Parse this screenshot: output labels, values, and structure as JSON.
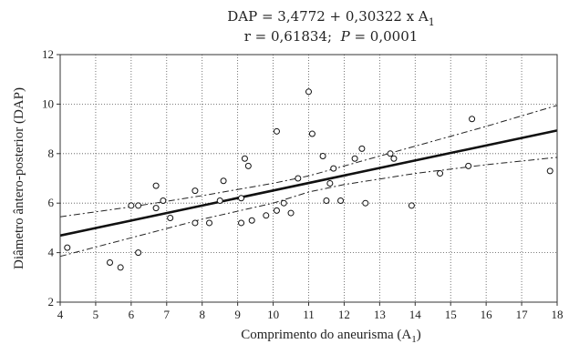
{
  "chart_data": {
    "type": "scatter",
    "title": {
      "line1_prefix": "DAP = 3,4772 + 0,30322 x A",
      "line1_sub": "1",
      "line2_r": "r = 0,61834;",
      "line2_p_sym": "P",
      "line2_p_val": " = 0,0001"
    },
    "xlabel": {
      "text": "Comprimento do aneurisma (A",
      "sub": "1",
      "close": ")"
    },
    "ylabel": "Diâmetro ântero-posterior (DAP)",
    "xlim": [
      4,
      18
    ],
    "ylim": [
      2,
      12
    ],
    "xticks": [
      4,
      5,
      6,
      7,
      8,
      9,
      10,
      11,
      12,
      13,
      14,
      15,
      16,
      17,
      18
    ],
    "yticks": [
      2,
      4,
      6,
      8,
      10,
      12
    ],
    "grid": true,
    "regression": {
      "intercept": 3.4772,
      "slope": 0.30322
    },
    "ci_upper": [
      [
        4,
        5.45
      ],
      [
        6,
        5.85
      ],
      [
        8,
        6.3
      ],
      [
        10,
        6.8
      ],
      [
        11,
        7.1
      ],
      [
        12,
        7.5
      ],
      [
        14,
        8.3
      ],
      [
        16,
        9.1
      ],
      [
        18,
        9.95
      ]
    ],
    "ci_lower": [
      [
        4,
        3.85
      ],
      [
        6,
        4.6
      ],
      [
        8,
        5.35
      ],
      [
        10,
        6.0
      ],
      [
        11,
        6.45
      ],
      [
        12,
        6.75
      ],
      [
        14,
        7.2
      ],
      [
        16,
        7.55
      ],
      [
        18,
        7.85
      ]
    ],
    "points": [
      [
        4.2,
        4.2
      ],
      [
        5.4,
        3.6
      ],
      [
        5.7,
        3.4
      ],
      [
        6.0,
        5.9
      ],
      [
        6.2,
        5.9
      ],
      [
        6.2,
        4.0
      ],
      [
        6.7,
        6.7
      ],
      [
        6.7,
        5.8
      ],
      [
        6.9,
        6.1
      ],
      [
        7.1,
        5.4
      ],
      [
        7.8,
        6.5
      ],
      [
        7.8,
        5.2
      ],
      [
        8.2,
        5.2
      ],
      [
        8.5,
        6.1
      ],
      [
        8.6,
        6.9
      ],
      [
        9.1,
        6.2
      ],
      [
        9.1,
        5.2
      ],
      [
        9.2,
        7.8
      ],
      [
        9.3,
        7.5
      ],
      [
        9.4,
        5.3
      ],
      [
        9.8,
        5.5
      ],
      [
        10.1,
        8.9
      ],
      [
        10.1,
        5.7
      ],
      [
        10.3,
        6.0
      ],
      [
        10.5,
        5.6
      ],
      [
        10.7,
        7.0
      ],
      [
        11.0,
        10.5
      ],
      [
        11.1,
        8.8
      ],
      [
        11.4,
        7.9
      ],
      [
        11.5,
        6.1
      ],
      [
        11.6,
        6.8
      ],
      [
        11.7,
        7.4
      ],
      [
        11.9,
        6.1
      ],
      [
        12.3,
        7.8
      ],
      [
        12.5,
        8.2
      ],
      [
        12.6,
        6.0
      ],
      [
        13.3,
        8.0
      ],
      [
        13.4,
        7.8
      ],
      [
        13.9,
        5.9
      ],
      [
        14.7,
        7.2
      ],
      [
        15.5,
        7.5
      ],
      [
        15.6,
        9.4
      ],
      [
        17.8,
        7.3
      ]
    ]
  }
}
